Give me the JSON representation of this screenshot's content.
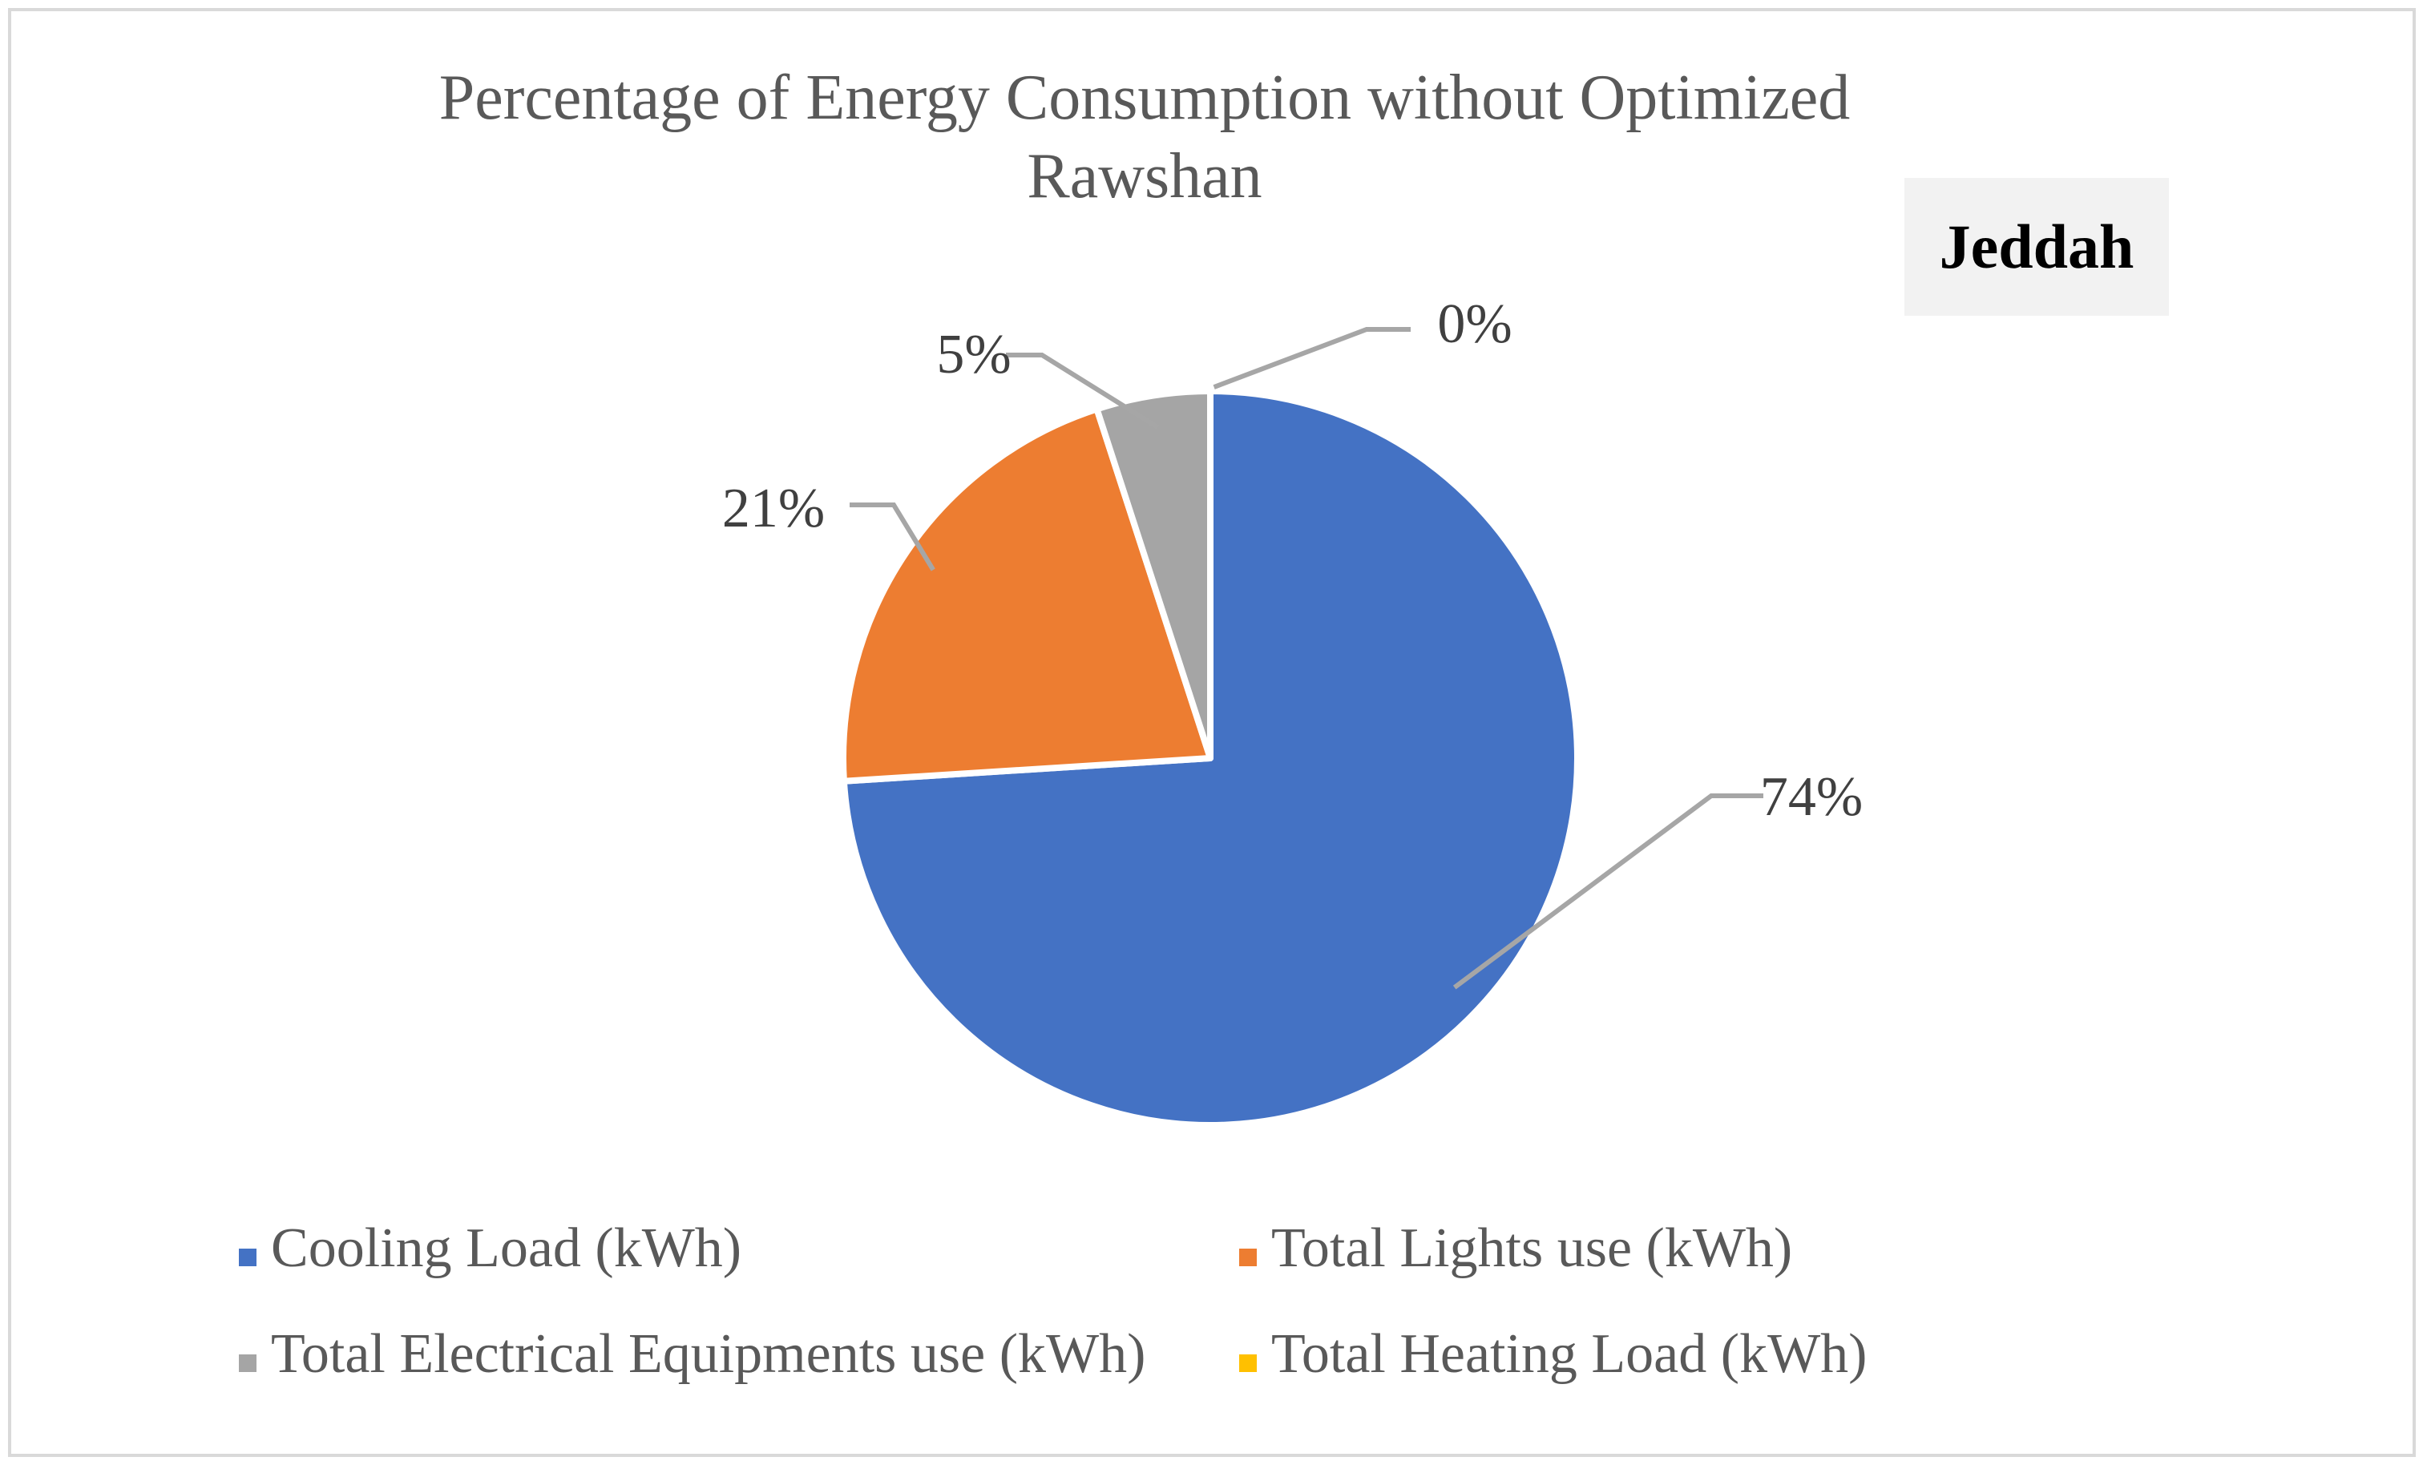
{
  "chart_data": {
    "type": "pie",
    "title": "Percentage of Energy Consumption without Optimized Rawshan",
    "title_lines": [
      "Percentage of Energy Consumption without Optimized",
      "Rawshan"
    ],
    "annotation": "Jeddah",
    "slices": [
      {
        "name": "Cooling Load (kWh)",
        "value": 74,
        "label": "74%",
        "color": "#4472c4"
      },
      {
        "name": "Total Lights use (kWh)",
        "value": 21,
        "label": "21%",
        "color": "#ed7d31"
      },
      {
        "name": "Total Electrical Equipments use (kWh)",
        "value": 5,
        "label": "5%",
        "color": "#a5a5a5"
      },
      {
        "name": "Total Heating Load (kWh)",
        "value": 0,
        "label": "0%",
        "color": "#ffc000"
      }
    ],
    "legend_position": "bottom",
    "start_angle": "12 o'clock",
    "direction": "clockwise"
  }
}
